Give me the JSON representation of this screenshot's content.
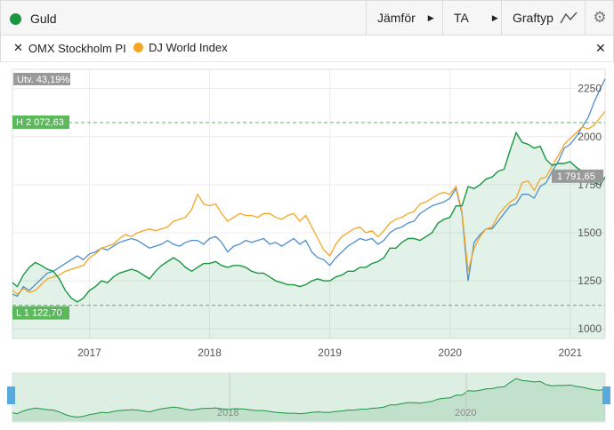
{
  "header": {
    "asset_name": "Guld",
    "compare_label": "Jämför",
    "ta_label": "TA",
    "charttype_label": "Graftyp",
    "settings_icon": "gear-icon",
    "charttype_icon": "line-chart-icon"
  },
  "legend": {
    "items": [
      {
        "name": "OMX Stockholm PI",
        "color": "#4f8fc9"
      },
      {
        "name": "DJ World Index",
        "color": "#f5a623"
      }
    ]
  },
  "colors": {
    "gold": "#1a9641",
    "omx": "#4f8fc9",
    "dj": "#f5a623",
    "badge_green": "#5cb85c",
    "badge_gray": "#9a9a9a"
  },
  "chart_data": {
    "type": "line",
    "y_range": [
      950,
      2350
    ],
    "x_range": [
      2016.36,
      2021.29
    ],
    "grid": true,
    "legend_position": "top-left",
    "y_ticks": [
      "1000",
      "1250",
      "1500",
      "1750",
      "2000",
      "2250"
    ],
    "x_ticks": [
      "2017",
      "2018",
      "2019",
      "2020",
      "2021"
    ],
    "change_label": "Utv. 43,19%",
    "high_label": "H 2 072,63",
    "high_value": 2072.63,
    "low_label": "L 1 122,70",
    "low_value": 1122.7,
    "last_label": "1 791,65",
    "last_value": 1791.65,
    "series": [
      {
        "name": "Guld",
        "x": [
          2016.36,
          2016.4,
          2016.45,
          2016.5,
          2016.55,
          2016.6,
          2016.65,
          2016.7,
          2016.75,
          2016.8,
          2016.85,
          2016.9,
          2016.95,
          2017.0,
          2017.05,
          2017.1,
          2017.15,
          2017.2,
          2017.25,
          2017.3,
          2017.35,
          2017.4,
          2017.45,
          2017.5,
          2017.55,
          2017.6,
          2017.65,
          2017.7,
          2017.75,
          2017.8,
          2017.85,
          2017.9,
          2017.95,
          2018.0,
          2018.05,
          2018.1,
          2018.15,
          2018.2,
          2018.25,
          2018.3,
          2018.35,
          2018.4,
          2018.45,
          2018.5,
          2018.55,
          2018.6,
          2018.65,
          2018.7,
          2018.75,
          2018.8,
          2018.85,
          2018.9,
          2018.95,
          2019.0,
          2019.05,
          2019.1,
          2019.15,
          2019.2,
          2019.25,
          2019.3,
          2019.35,
          2019.4,
          2019.45,
          2019.5,
          2019.55,
          2019.6,
          2019.65,
          2019.7,
          2019.75,
          2019.8,
          2019.85,
          2019.9,
          2019.95,
          2020.0,
          2020.05,
          2020.1,
          2020.15,
          2020.2,
          2020.25,
          2020.3,
          2020.35,
          2020.4,
          2020.45,
          2020.5,
          2020.55,
          2020.6,
          2020.65,
          2020.7,
          2020.75,
          2020.8,
          2020.85,
          2020.9,
          2020.95,
          2021.0,
          2021.05,
          2021.1,
          2021.15,
          2021.2,
          2021.25,
          2021.29
        ],
        "values": [
          1240,
          1220,
          1280,
          1320,
          1345,
          1330,
          1310,
          1300,
          1260,
          1200,
          1160,
          1140,
          1160,
          1200,
          1220,
          1250,
          1240,
          1270,
          1290,
          1300,
          1310,
          1300,
          1280,
          1260,
          1300,
          1330,
          1350,
          1370,
          1350,
          1320,
          1300,
          1320,
          1340,
          1340,
          1350,
          1330,
          1320,
          1330,
          1330,
          1320,
          1300,
          1290,
          1290,
          1270,
          1250,
          1240,
          1230,
          1230,
          1220,
          1230,
          1250,
          1260,
          1250,
          1250,
          1270,
          1280,
          1300,
          1300,
          1320,
          1320,
          1340,
          1350,
          1370,
          1420,
          1420,
          1450,
          1470,
          1470,
          1460,
          1480,
          1500,
          1550,
          1570,
          1580,
          1640,
          1640,
          1740,
          1730,
          1750,
          1780,
          1790,
          1820,
          1830,
          1930,
          2020,
          1970,
          1960,
          1940,
          1950,
          1880,
          1850,
          1860,
          1860,
          1870,
          1840,
          1820,
          1790,
          1760,
          1750,
          1790
        ]
      },
      {
        "name": "OMX Stockholm PI",
        "x": [
          2016.36,
          2016.4,
          2016.45,
          2016.5,
          2016.55,
          2016.6,
          2016.65,
          2016.7,
          2016.75,
          2016.8,
          2016.85,
          2016.9,
          2016.95,
          2017.0,
          2017.05,
          2017.1,
          2017.15,
          2017.2,
          2017.25,
          2017.3,
          2017.35,
          2017.4,
          2017.45,
          2017.5,
          2017.55,
          2017.6,
          2017.65,
          2017.7,
          2017.75,
          2017.8,
          2017.85,
          2017.9,
          2017.95,
          2018.0,
          2018.05,
          2018.1,
          2018.15,
          2018.2,
          2018.25,
          2018.3,
          2018.35,
          2018.4,
          2018.45,
          2018.5,
          2018.55,
          2018.6,
          2018.65,
          2018.7,
          2018.75,
          2018.8,
          2018.85,
          2018.9,
          2018.95,
          2019.0,
          2019.05,
          2019.1,
          2019.15,
          2019.2,
          2019.25,
          2019.3,
          2019.35,
          2019.4,
          2019.45,
          2019.5,
          2019.55,
          2019.6,
          2019.65,
          2019.7,
          2019.75,
          2019.8,
          2019.85,
          2019.9,
          2019.95,
          2020.0,
          2020.05,
          2020.1,
          2020.15,
          2020.2,
          2020.25,
          2020.3,
          2020.35,
          2020.4,
          2020.45,
          2020.5,
          2020.55,
          2020.6,
          2020.65,
          2020.7,
          2020.75,
          2020.8,
          2020.85,
          2020.9,
          2020.95,
          2021.0,
          2021.05,
          2021.1,
          2021.15,
          2021.2,
          2021.25,
          2021.29
        ],
        "values": [
          1180,
          1170,
          1220,
          1200,
          1230,
          1260,
          1290,
          1300,
          1320,
          1340,
          1360,
          1380,
          1360,
          1390,
          1400,
          1420,
          1410,
          1430,
          1450,
          1460,
          1470,
          1460,
          1440,
          1420,
          1430,
          1440,
          1460,
          1440,
          1430,
          1450,
          1460,
          1460,
          1440,
          1470,
          1480,
          1450,
          1400,
          1430,
          1440,
          1460,
          1450,
          1460,
          1470,
          1440,
          1450,
          1430,
          1450,
          1470,
          1440,
          1460,
          1400,
          1370,
          1360,
          1330,
          1370,
          1400,
          1430,
          1450,
          1470,
          1460,
          1470,
          1440,
          1460,
          1500,
          1520,
          1530,
          1550,
          1560,
          1600,
          1620,
          1640,
          1650,
          1660,
          1680,
          1730,
          1600,
          1250,
          1450,
          1490,
          1520,
          1520,
          1560,
          1600,
          1640,
          1650,
          1700,
          1700,
          1680,
          1740,
          1760,
          1820,
          1870,
          1940,
          1960,
          2000,
          2050,
          2100,
          2180,
          2250,
          2300
        ]
      },
      {
        "name": "DJ World Index",
        "x": [
          2016.36,
          2016.4,
          2016.45,
          2016.5,
          2016.55,
          2016.6,
          2016.65,
          2016.7,
          2016.75,
          2016.8,
          2016.85,
          2016.9,
          2016.95,
          2017.0,
          2017.05,
          2017.1,
          2017.15,
          2017.2,
          2017.25,
          2017.3,
          2017.35,
          2017.4,
          2017.45,
          2017.5,
          2017.55,
          2017.6,
          2017.65,
          2017.7,
          2017.75,
          2017.8,
          2017.85,
          2017.9,
          2017.95,
          2018.0,
          2018.05,
          2018.1,
          2018.15,
          2018.2,
          2018.25,
          2018.3,
          2018.35,
          2018.4,
          2018.45,
          2018.5,
          2018.55,
          2018.6,
          2018.65,
          2018.7,
          2018.75,
          2018.8,
          2018.85,
          2018.9,
          2018.95,
          2019.0,
          2019.05,
          2019.1,
          2019.15,
          2019.2,
          2019.25,
          2019.3,
          2019.35,
          2019.4,
          2019.45,
          2019.5,
          2019.55,
          2019.6,
          2019.65,
          2019.7,
          2019.75,
          2019.8,
          2019.85,
          2019.9,
          2019.95,
          2020.0,
          2020.05,
          2020.1,
          2020.15,
          2020.2,
          2020.25,
          2020.3,
          2020.35,
          2020.4,
          2020.45,
          2020.5,
          2020.55,
          2020.6,
          2020.65,
          2020.7,
          2020.75,
          2020.8,
          2020.85,
          2020.9,
          2020.95,
          2021.0,
          2021.05,
          2021.1,
          2021.15,
          2021.2,
          2021.25,
          2021.29
        ],
        "values": [
          1200,
          1180,
          1210,
          1190,
          1200,
          1230,
          1260,
          1270,
          1280,
          1300,
          1310,
          1320,
          1330,
          1370,
          1390,
          1420,
          1430,
          1440,
          1470,
          1490,
          1480,
          1500,
          1510,
          1520,
          1510,
          1520,
          1530,
          1560,
          1570,
          1580,
          1620,
          1700,
          1650,
          1640,
          1650,
          1600,
          1560,
          1580,
          1600,
          1590,
          1590,
          1580,
          1600,
          1600,
          1580,
          1570,
          1590,
          1600,
          1560,
          1590,
          1530,
          1470,
          1410,
          1380,
          1440,
          1480,
          1500,
          1520,
          1530,
          1500,
          1510,
          1480,
          1510,
          1550,
          1570,
          1580,
          1600,
          1610,
          1650,
          1660,
          1680,
          1700,
          1710,
          1700,
          1740,
          1610,
          1300,
          1420,
          1480,
          1520,
          1530,
          1590,
          1630,
          1660,
          1680,
          1760,
          1770,
          1720,
          1780,
          1790,
          1850,
          1900,
          1960,
          1990,
          2020,
          2050,
          2040,
          2060,
          2100,
          2130
        ]
      }
    ]
  }
}
